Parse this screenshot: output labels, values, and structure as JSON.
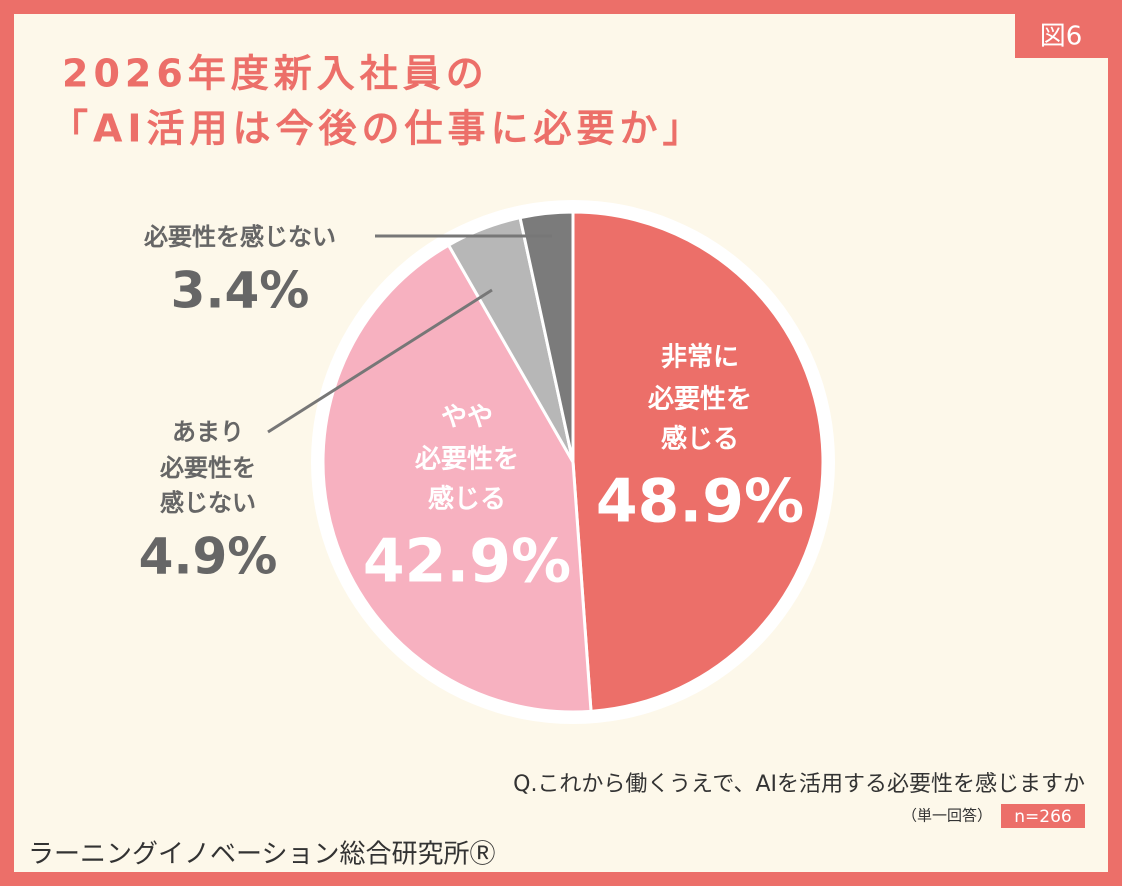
{
  "figure_label": "図6",
  "chart_data": {
    "type": "pie",
    "title": [
      "2026年度新入社員の",
      "「AI活用は今後の仕事に必要か」"
    ],
    "categories": [
      [
        "非常に",
        "必要性を",
        "感じる"
      ],
      [
        "やや",
        "必要性を",
        "感じる"
      ],
      [
        "あまり",
        "必要性を",
        "感じない"
      ],
      [
        "必要性を感じない"
      ]
    ],
    "values": [
      48.9,
      42.9,
      4.9,
      3.4
    ],
    "value_labels": [
      "48.9%",
      "42.9%",
      "4.9%",
      "3.4%"
    ],
    "colors": [
      "#ec6f69",
      "#f7b1c0",
      "#b7b7b7",
      "#7b7b7b"
    ]
  },
  "question": "Q.これから働くうえで、AIを活用する必要性を感じますか",
  "answer_type": "（単一回答）",
  "sample_size": "n=266",
  "source": "ラーニングイノベーション総合研究所Ⓡ"
}
